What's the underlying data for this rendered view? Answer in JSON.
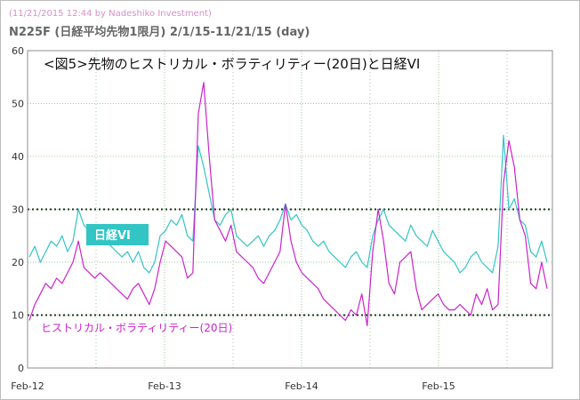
{
  "window": {
    "stamp": "(11/21/2015 12:44 by Nadeshiko Investment)",
    "heading": "N225F (日経平均先物1限月) 2/1/15-11/21/15 (day)"
  },
  "colors": {
    "vi_line": "#33c4c4",
    "vol_line": "#cc22cc",
    "reference_line": "#1a3a1a",
    "grid": "#9cc89c",
    "vi_label_bg": "#33c4c4"
  },
  "chart_data": {
    "type": "line",
    "title": "<図5>先物のヒストリカル・ボラティリティー(20日)と日経VI",
    "x_ticks": [
      "Feb-12",
      "Feb-13",
      "Feb-14",
      "Feb-15"
    ],
    "y_ticks": [
      "0",
      "10",
      "20",
      "30",
      "40",
      "50",
      "60"
    ],
    "ylim": [
      0,
      60
    ],
    "grid": true,
    "reference_lines": [
      10,
      30
    ],
    "annotations": [
      {
        "text": "日経VI",
        "series": "vi"
      },
      {
        "text": "ヒストリカル・ボラティリティー(20日)",
        "series": "vol"
      }
    ],
    "series": [
      {
        "key": "vi",
        "values": [
          21,
          23,
          20,
          22,
          24,
          23,
          25,
          22,
          24,
          30,
          27,
          26,
          27,
          25,
          24,
          23,
          22,
          21,
          22,
          20,
          22,
          19,
          18,
          20,
          25,
          26,
          28,
          27,
          29,
          25,
          24,
          42,
          38,
          33,
          28,
          27,
          29,
          30,
          25,
          24,
          23,
          24,
          25,
          23,
          25,
          26,
          28,
          31,
          28,
          29,
          27,
          26,
          24,
          23,
          24,
          22,
          21,
          20,
          19,
          21,
          22,
          20,
          19,
          25,
          28,
          30,
          27,
          26,
          25,
          24,
          27,
          25,
          24,
          23,
          26,
          24,
          22,
          21,
          20,
          18,
          19,
          21,
          22,
          20,
          19,
          18,
          23,
          44,
          30,
          32,
          28,
          27,
          22,
          21,
          24,
          20
        ]
      },
      {
        "key": "vol",
        "values": [
          9,
          12,
          14,
          16,
          15,
          17,
          16,
          18,
          20,
          24,
          19,
          18,
          17,
          18,
          17,
          16,
          15,
          14,
          13,
          15,
          16,
          14,
          12,
          15,
          20,
          24,
          23,
          22,
          21,
          17,
          18,
          48,
          54,
          40,
          28,
          26,
          24,
          27,
          22,
          21,
          20,
          19,
          17,
          16,
          18,
          20,
          22,
          31,
          24,
          20,
          18,
          17,
          16,
          15,
          13,
          12,
          11,
          10,
          9,
          11,
          10,
          14,
          8,
          22,
          30,
          24,
          16,
          14,
          20,
          21,
          22,
          15,
          11,
          12,
          13,
          14,
          12,
          11,
          11,
          12,
          11,
          10,
          14,
          12,
          15,
          11,
          12,
          35,
          43,
          38,
          28,
          25,
          16,
          15,
          20,
          15
        ]
      }
    ]
  }
}
